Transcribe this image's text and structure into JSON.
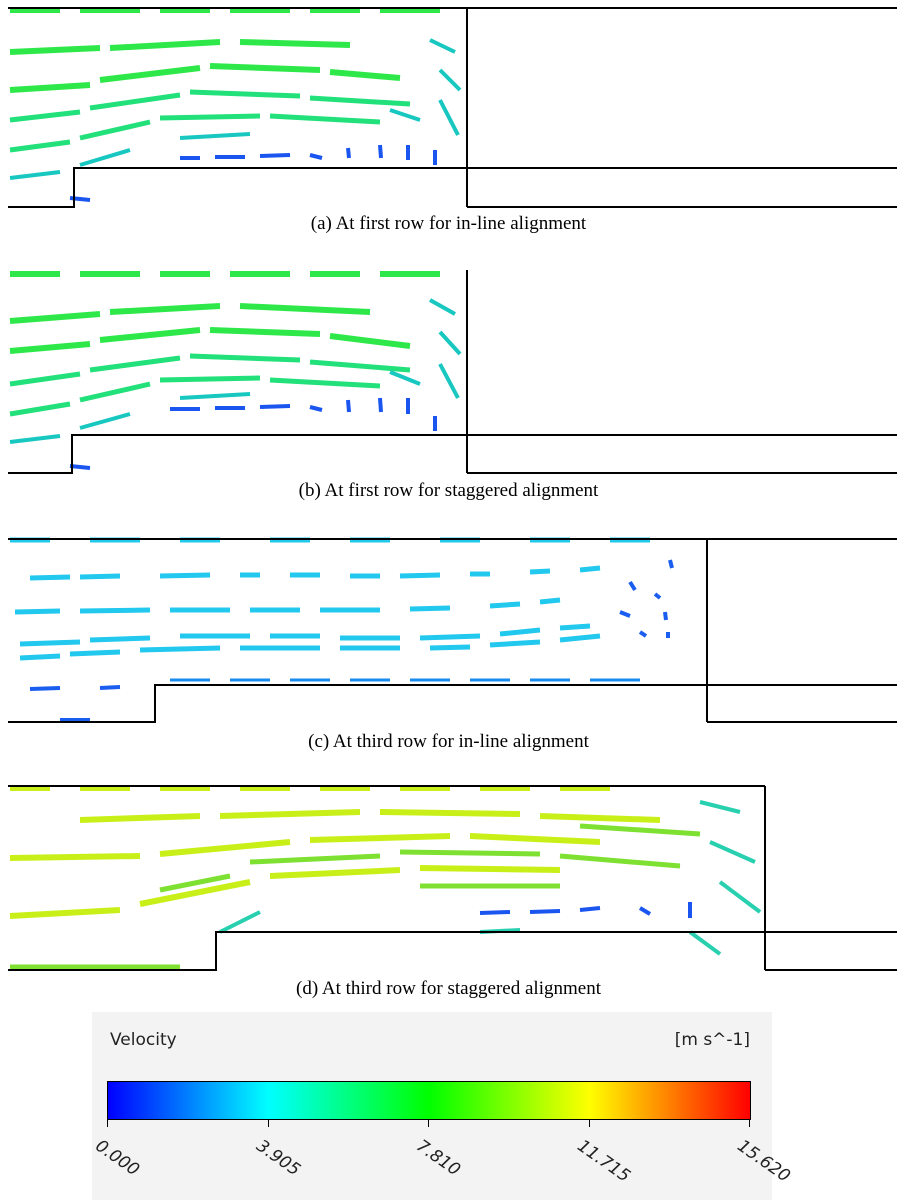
{
  "panels": [
    {
      "id": "a",
      "caption": "(a) At first row for in-line alignment"
    },
    {
      "id": "b",
      "caption": "(b) At first row for staggered alignment"
    },
    {
      "id": "c",
      "caption": "(c) At third row for in-line alignment"
    },
    {
      "id": "d",
      "caption": "(d) At third row for staggered alignment"
    }
  ],
  "legend": {
    "title": "Velocity",
    "units": "[m s^-1]",
    "ticks": [
      "0.000",
      "3.905",
      "7.810",
      "11.715",
      "15.620"
    ],
    "range": [
      0,
      15.62
    ],
    "colormap": [
      "#0000ff",
      "#00ffff",
      "#00ff00",
      "#ffff00",
      "#ff0000"
    ]
  }
}
